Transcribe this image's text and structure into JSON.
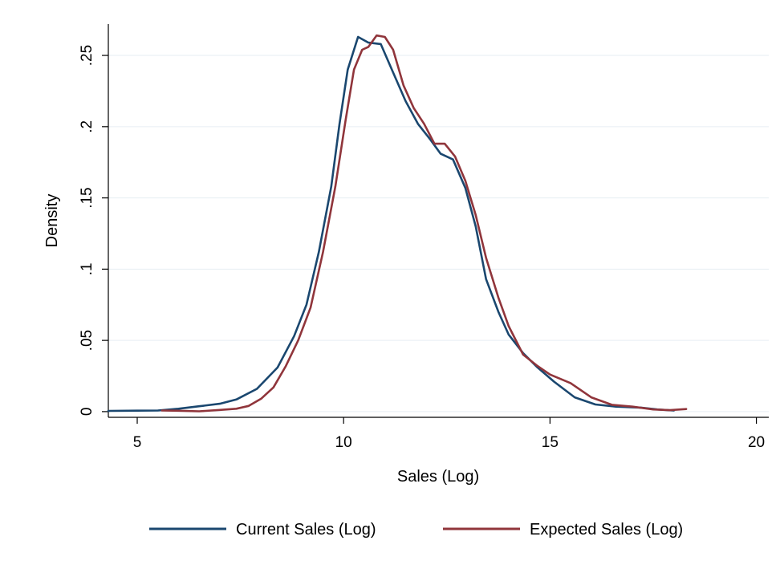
{
  "chart_data": {
    "type": "line",
    "title": "",
    "xlabel": "Sales (Log)",
    "ylabel": "Density",
    "xlim": [
      4.3,
      20.3
    ],
    "ylim": [
      -0.004,
      0.272
    ],
    "x_ticks": [
      5,
      10,
      15,
      20
    ],
    "x_tick_labels": [
      "5",
      "10",
      "15",
      "20"
    ],
    "y_ticks": [
      0,
      0.05,
      0.1,
      0.15,
      0.2,
      0.25
    ],
    "y_tick_labels": [
      "0",
      ".05",
      ".1",
      ".15",
      ".2",
      ".25"
    ],
    "grid": "horizontal",
    "legend_position": "bottom",
    "series": [
      {
        "name": "Current Sales (Log)",
        "color": "#1a476f",
        "points": [
          [
            4.3,
            0.0005
          ],
          [
            5.0,
            0.0007
          ],
          [
            5.5,
            0.0008
          ],
          [
            6.0,
            0.002
          ],
          [
            6.5,
            0.0038
          ],
          [
            7.0,
            0.0055
          ],
          [
            7.4,
            0.0085
          ],
          [
            7.9,
            0.016
          ],
          [
            8.4,
            0.031
          ],
          [
            8.8,
            0.053
          ],
          [
            9.1,
            0.075
          ],
          [
            9.4,
            0.112
          ],
          [
            9.7,
            0.158
          ],
          [
            9.9,
            0.202
          ],
          [
            10.1,
            0.24
          ],
          [
            10.35,
            0.263
          ],
          [
            10.6,
            0.259
          ],
          [
            10.9,
            0.258
          ],
          [
            11.2,
            0.238
          ],
          [
            11.5,
            0.218
          ],
          [
            11.8,
            0.202
          ],
          [
            12.1,
            0.191
          ],
          [
            12.35,
            0.181
          ],
          [
            12.65,
            0.177
          ],
          [
            12.95,
            0.157
          ],
          [
            13.2,
            0.13
          ],
          [
            13.45,
            0.093
          ],
          [
            13.75,
            0.07
          ],
          [
            14.0,
            0.054
          ],
          [
            14.35,
            0.041
          ],
          [
            14.7,
            0.031
          ],
          [
            15.1,
            0.021
          ],
          [
            15.6,
            0.01
          ],
          [
            16.1,
            0.005
          ],
          [
            16.6,
            0.0035
          ],
          [
            17.2,
            0.0028
          ],
          [
            17.6,
            0.0015
          ],
          [
            18.0,
            0.0008
          ]
        ]
      },
      {
        "name": "Expected Sales (Log)",
        "color": "#90353b",
        "points": [
          [
            5.6,
            0.0008
          ],
          [
            6.0,
            0.0006
          ],
          [
            6.5,
            0.0002
          ],
          [
            7.0,
            0.0012
          ],
          [
            7.4,
            0.002
          ],
          [
            7.7,
            0.004
          ],
          [
            8.0,
            0.009
          ],
          [
            8.3,
            0.017
          ],
          [
            8.6,
            0.032
          ],
          [
            8.9,
            0.05
          ],
          [
            9.2,
            0.073
          ],
          [
            9.5,
            0.112
          ],
          [
            9.8,
            0.158
          ],
          [
            10.05,
            0.205
          ],
          [
            10.25,
            0.24
          ],
          [
            10.45,
            0.254
          ],
          [
            10.6,
            0.256
          ],
          [
            10.8,
            0.264
          ],
          [
            11.0,
            0.263
          ],
          [
            11.2,
            0.254
          ],
          [
            11.45,
            0.229
          ],
          [
            11.7,
            0.213
          ],
          [
            11.95,
            0.202
          ],
          [
            12.2,
            0.188
          ],
          [
            12.45,
            0.188
          ],
          [
            12.7,
            0.179
          ],
          [
            12.95,
            0.162
          ],
          [
            13.2,
            0.138
          ],
          [
            13.45,
            0.108
          ],
          [
            13.75,
            0.08
          ],
          [
            14.0,
            0.06
          ],
          [
            14.35,
            0.04
          ],
          [
            14.7,
            0.032
          ],
          [
            15.0,
            0.026
          ],
          [
            15.5,
            0.02
          ],
          [
            16.0,
            0.01
          ],
          [
            16.5,
            0.0048
          ],
          [
            17.0,
            0.0035
          ],
          [
            17.5,
            0.0015
          ],
          [
            17.9,
            0.001
          ],
          [
            18.3,
            0.0018
          ]
        ]
      }
    ]
  }
}
